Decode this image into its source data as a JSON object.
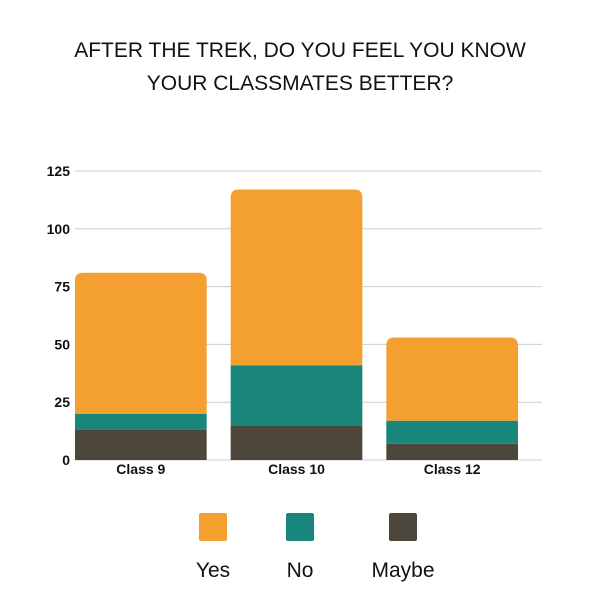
{
  "chart_data": {
    "type": "bar",
    "stacked": true,
    "title_lines": [
      "AFTER THE TREK, DO YOU FEEL YOU KNOW",
      "YOUR CLASSMATES BETTER?"
    ],
    "categories": [
      "Class 9",
      "Class 10",
      "Class 12"
    ],
    "series": [
      {
        "name": "Maybe",
        "color": "#4d463b",
        "values": [
          13,
          15,
          7
        ]
      },
      {
        "name": "No",
        "color": "#1a857a",
        "values": [
          7,
          26,
          10
        ]
      },
      {
        "name": "Yes",
        "color": "#f4a030",
        "values": [
          61,
          76,
          36
        ]
      }
    ],
    "ylim": [
      0,
      125
    ],
    "yticks": [
      "0",
      "25",
      "50",
      "75",
      "100",
      "125"
    ],
    "grid": true,
    "legend_position": "bottom",
    "legend_order": [
      "Yes",
      "No",
      "Maybe"
    ]
  }
}
